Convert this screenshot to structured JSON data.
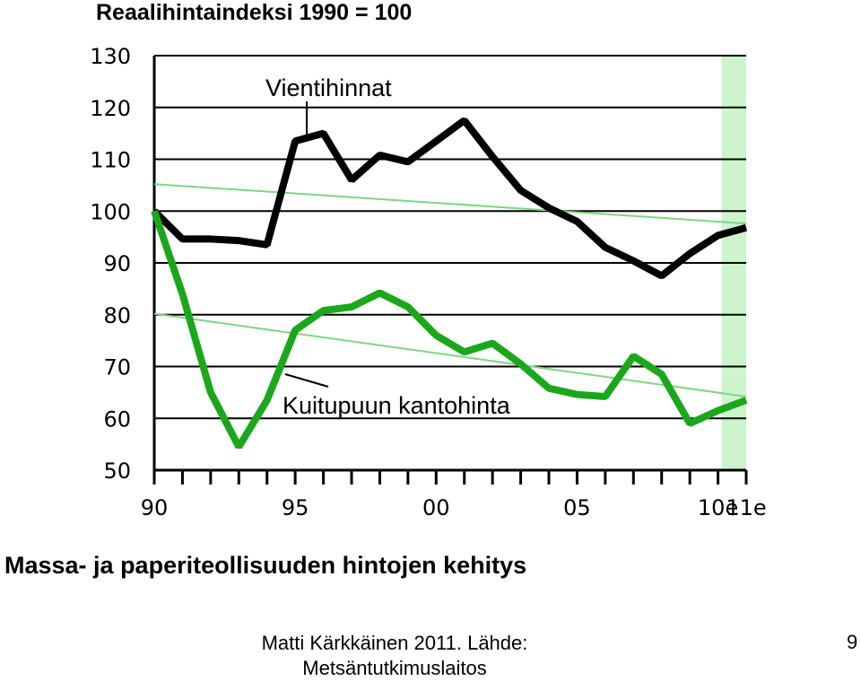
{
  "header": {
    "title": "Reaalihintaindeksi 1990 = 100"
  },
  "footer": {
    "subtitle": "Massa- ja paperiteollisuuden hintojen kehitys",
    "source": "Matti Kärkkäinen 2011. Lähde: Metsäntutkimuslaitos",
    "page_number": "9"
  },
  "colors": {
    "vientihinnat": "#000000",
    "kantohinta": "#1aa81a",
    "trend": "#7fd67f",
    "forecast_band": "#cdf5cd",
    "grid": "#000000"
  },
  "chart_data": {
    "type": "line",
    "title": "Reaalihintaindeksi 1990 = 100",
    "xlabel": "",
    "ylabel": "",
    "xlim": [
      1990,
      2011
    ],
    "ylim": [
      50,
      130
    ],
    "yticks": [
      50,
      60,
      70,
      80,
      90,
      100,
      110,
      120,
      130
    ],
    "ytick_labels": [
      "50",
      "60",
      "70",
      "80",
      "90",
      "100",
      "110",
      "120",
      "130"
    ],
    "xticks": [
      1990,
      1995,
      2000,
      2005,
      2010,
      2011
    ],
    "xtick_labels": [
      "90",
      "95",
      "00",
      "05",
      "10e",
      "11e"
    ],
    "grid": true,
    "forecast_region": [
      2010,
      2011
    ],
    "series": [
      {
        "name": "Vientihinnat",
        "x": [
          1990,
          1991,
          1992,
          1993,
          1994,
          1995,
          1996,
          1997,
          1998,
          1999,
          2000,
          2001,
          2002,
          2003,
          2004,
          2005,
          2006,
          2007,
          2008,
          2009,
          2010,
          2011
        ],
        "values": [
          100,
          94.6,
          94.6,
          94.3,
          93.5,
          113.5,
          115,
          106,
          110.8,
          109.5,
          113.5,
          117.5,
          110.5,
          104,
          100.6,
          98,
          93,
          90.4,
          87.5,
          91.8,
          95.3,
          96.8
        ]
      },
      {
        "name": "Kuitupuun kantohinta",
        "x": [
          1990,
          1991,
          1992,
          1993,
          1994,
          1995,
          1996,
          1997,
          1998,
          1999,
          2000,
          2001,
          2002,
          2003,
          2004,
          2005,
          2006,
          2007,
          2008,
          2009,
          2010,
          2011
        ],
        "values": [
          100,
          84,
          65,
          54.5,
          63.5,
          77,
          80.8,
          81.5,
          84.2,
          81.5,
          76,
          72.8,
          74.5,
          70.5,
          65.8,
          64.6,
          64.2,
          72,
          68.5,
          59,
          61.5,
          63.5
        ]
      }
    ],
    "trend_lines": [
      {
        "x": [
          1990,
          2011
        ],
        "values": [
          105.2,
          97.6
        ]
      },
      {
        "x": [
          1990,
          2011
        ],
        "values": [
          80.2,
          64.2
        ]
      }
    ]
  }
}
